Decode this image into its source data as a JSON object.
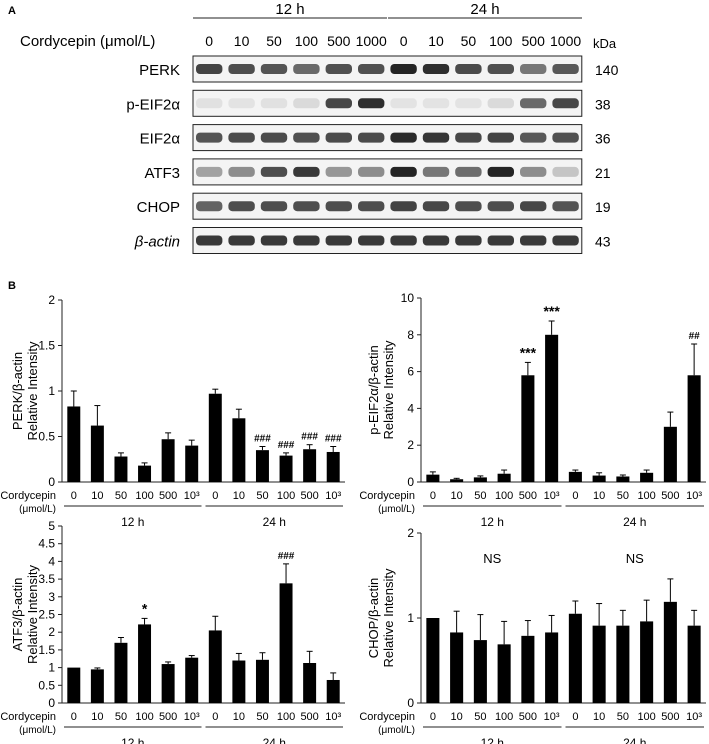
{
  "panel_a": {
    "label": "A",
    "treatment_label": "Cordycepin (μmol/L)",
    "time_groups": [
      "12 h",
      "24 h"
    ],
    "doses": [
      "0",
      "10",
      "50",
      "100",
      "500",
      "1000",
      "0",
      "10",
      "50",
      "100",
      "500",
      "1000"
    ],
    "unit": "kDa",
    "blots": [
      {
        "name": "PERK",
        "kda": "140",
        "intensity": [
          0.8,
          0.75,
          0.72,
          0.62,
          0.74,
          0.74,
          0.95,
          0.9,
          0.76,
          0.74,
          0.55,
          0.7
        ]
      },
      {
        "name": "p-EIF2α",
        "kda": "38",
        "intensity": [
          0.05,
          0.04,
          0.05,
          0.08,
          0.78,
          0.9,
          0.04,
          0.04,
          0.04,
          0.08,
          0.62,
          0.78
        ]
      },
      {
        "name": "EIF2α",
        "kda": "36",
        "intensity": [
          0.72,
          0.76,
          0.76,
          0.74,
          0.76,
          0.76,
          0.92,
          0.86,
          0.78,
          0.8,
          0.7,
          0.74
        ]
      },
      {
        "name": "ATF3",
        "kda": "21",
        "intensity": [
          0.35,
          0.45,
          0.75,
          0.85,
          0.4,
          0.45,
          0.95,
          0.55,
          0.6,
          0.95,
          0.45,
          0.18
        ]
      },
      {
        "name": "CHOP",
        "kda": "19",
        "intensity": [
          0.65,
          0.75,
          0.75,
          0.75,
          0.75,
          0.75,
          0.8,
          0.78,
          0.75,
          0.75,
          0.78,
          0.72
        ]
      },
      {
        "name": "β-actin",
        "kda": "43",
        "intensity": [
          0.85,
          0.85,
          0.85,
          0.85,
          0.85,
          0.85,
          0.85,
          0.85,
          0.85,
          0.85,
          0.85,
          0.85
        ]
      }
    ]
  },
  "panel_b_label": "B",
  "chart_data": [
    {
      "type": "bar",
      "ylabel_line1": "PERK/β-actin",
      "ylabel_line2": "Relative Intensity",
      "ylim": [
        0,
        2
      ],
      "yticks": [
        "0",
        "0.5",
        "1",
        "1.5",
        "2"
      ],
      "treatment_label": "Cordycepin",
      "unit_label": "(μmol/L)",
      "categories": [
        "0",
        "10",
        "50",
        "100",
        "500",
        "10³",
        "0",
        "10",
        "50",
        "100",
        "500",
        "10³"
      ],
      "groups": [
        "12 h",
        "24 h"
      ],
      "values": [
        0.83,
        0.62,
        0.28,
        0.18,
        0.47,
        0.4,
        0.97,
        0.7,
        0.35,
        0.29,
        0.36,
        0.33
      ],
      "errors": [
        0.17,
        0.22,
        0.04,
        0.03,
        0.07,
        0.06,
        0.05,
        0.1,
        0.04,
        0.03,
        0.05,
        0.06
      ],
      "annotations": [
        "",
        "",
        "",
        "",
        "",
        "",
        "",
        "",
        "###",
        "###",
        "###",
        "###"
      ]
    },
    {
      "type": "bar",
      "ylabel_line1": "p-EIF2α/β-actin",
      "ylabel_line2": "Relative Intensity",
      "ylim": [
        0,
        10
      ],
      "yticks": [
        "0",
        "2",
        "4",
        "6",
        "8",
        "10"
      ],
      "treatment_label": "Cordycepin",
      "unit_label": "(μmol/L)",
      "categories": [
        "0",
        "10",
        "50",
        "100",
        "500",
        "10³",
        "0",
        "10",
        "50",
        "100",
        "500",
        "10³"
      ],
      "groups": [
        "12 h",
        "24 h"
      ],
      "values": [
        0.4,
        0.15,
        0.25,
        0.45,
        5.8,
        8.0,
        0.55,
        0.35,
        0.3,
        0.5,
        3.0,
        5.8
      ],
      "errors": [
        0.15,
        0.05,
        0.08,
        0.2,
        0.7,
        0.75,
        0.1,
        0.15,
        0.08,
        0.15,
        0.8,
        1.7
      ],
      "annotations": [
        "",
        "",
        "",
        "",
        "***",
        "***",
        "",
        "",
        "",
        "",
        "",
        "##"
      ]
    },
    {
      "type": "bar",
      "ylabel_line1": "ATF3/β-actin",
      "ylabel_line2": "Relative Intensity",
      "ylim": [
        0,
        5
      ],
      "yticks": [
        "0",
        "0.5",
        "1",
        "1.5",
        "2",
        "2.5",
        "3",
        "3.5",
        "4",
        "4.5",
        "5"
      ],
      "treatment_label": "Cordycepin",
      "unit_label": "(μmol/L)",
      "categories": [
        "0",
        "10",
        "50",
        "100",
        "500",
        "10³",
        "0",
        "10",
        "50",
        "100",
        "500",
        "10³"
      ],
      "groups": [
        "12 h",
        "24 h"
      ],
      "values": [
        1.0,
        0.95,
        1.7,
        2.22,
        1.1,
        1.28,
        2.05,
        1.2,
        1.22,
        3.38,
        1.13,
        0.65
      ],
      "errors": [
        0.0,
        0.04,
        0.15,
        0.17,
        0.06,
        0.06,
        0.4,
        0.2,
        0.2,
        0.55,
        0.33,
        0.2
      ],
      "annotations": [
        "",
        "",
        "",
        "*",
        "",
        "",
        "",
        "",
        "",
        "###",
        "",
        ""
      ]
    },
    {
      "type": "bar",
      "ylabel_line1": "CHOP/β-actin",
      "ylabel_line2": "Relative Intensity",
      "ylim": [
        0,
        2
      ],
      "yticks": [
        "0",
        "1",
        "2"
      ],
      "treatment_label": "Cordycepin",
      "unit_label": "(μmol/L)",
      "categories": [
        "0",
        "10",
        "50",
        "100",
        "500",
        "10³",
        "0",
        "10",
        "50",
        "100",
        "500",
        "10³"
      ],
      "groups": [
        "12 h",
        "24 h"
      ],
      "values": [
        1.0,
        0.83,
        0.74,
        0.69,
        0.79,
        0.83,
        1.05,
        0.91,
        0.91,
        0.96,
        1.19,
        0.91
      ],
      "errors": [
        0.0,
        0.25,
        0.3,
        0.27,
        0.18,
        0.2,
        0.15,
        0.26,
        0.18,
        0.25,
        0.27,
        0.18
      ],
      "annotations": [],
      "group_annotations": [
        "NS",
        "NS"
      ]
    }
  ]
}
